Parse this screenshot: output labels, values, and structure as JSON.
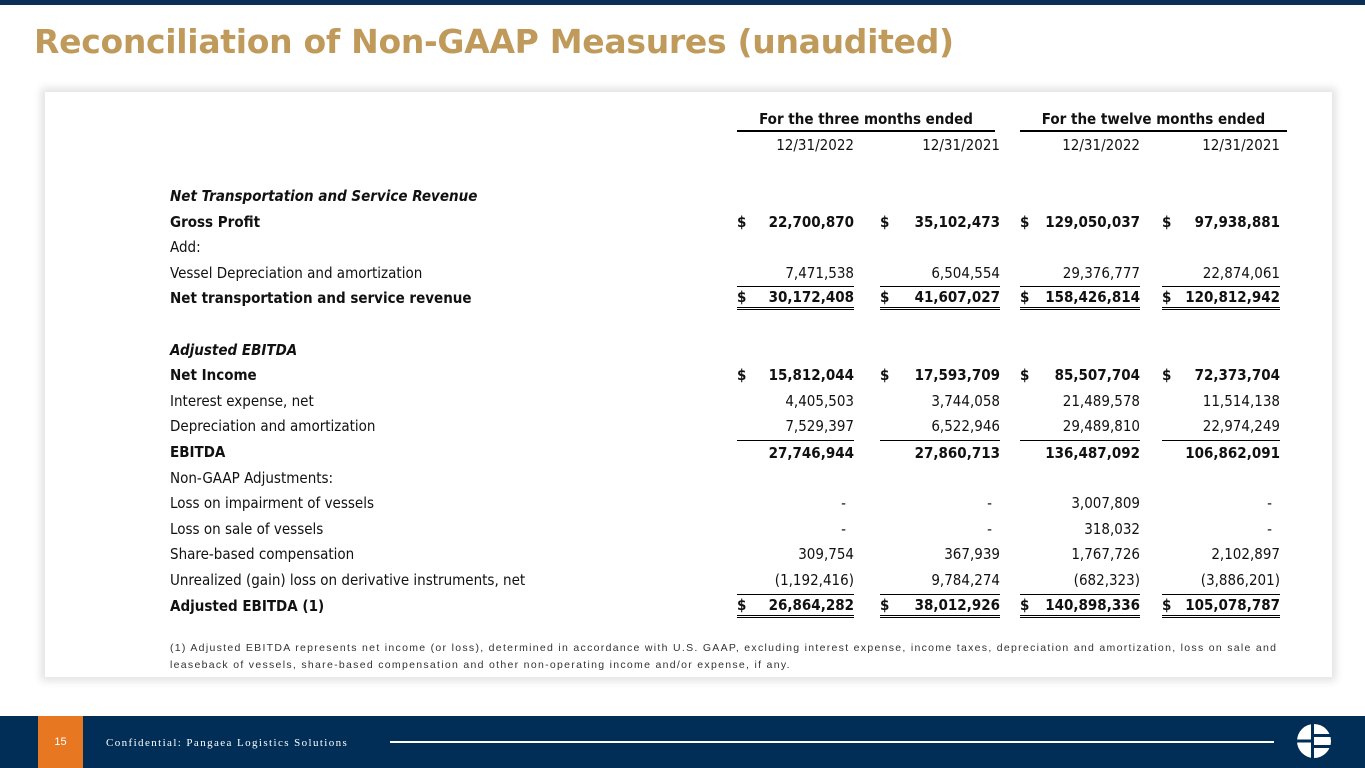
{
  "title": "Reconciliation of Non-GAAP Measures (unaudited)",
  "headers": {
    "three_months": "For the three months ended",
    "twelve_months": "For the twelve months ended",
    "dates": [
      "12/31/2022",
      "12/31/2021",
      "12/31/2022",
      "12/31/2021"
    ]
  },
  "rows": [
    {
      "label": "Net Transportation and Service Revenue",
      "style": "i",
      "values": [
        "",
        "",
        "",
        ""
      ]
    },
    {
      "label": "Gross Profit",
      "style": "b",
      "dollar": true,
      "values": [
        "22,700,870",
        "35,102,473",
        "129,050,037",
        "97,938,881"
      ]
    },
    {
      "label": "Add:",
      "values": [
        "",
        "",
        "",
        ""
      ]
    },
    {
      "label": "Vessel Depreciation and amortization",
      "values": [
        "7,471,538",
        "6,504,554",
        "29,376,777",
        "22,874,061"
      ]
    },
    {
      "label": "Net transportation and service revenue",
      "style": "b",
      "dollar": true,
      "lines": "total",
      "values": [
        "30,172,408",
        "41,607,027",
        "158,426,814",
        "120,812,942"
      ]
    },
    {
      "label": "",
      "values": [
        "",
        "",
        "",
        ""
      ]
    },
    {
      "label": "Adjusted EBITDA",
      "style": "i",
      "values": [
        "",
        "",
        "",
        ""
      ]
    },
    {
      "label": "Net Income",
      "style": "b",
      "dollar": true,
      "values": [
        "15,812,044",
        "17,593,709",
        "85,507,704",
        "72,373,704"
      ]
    },
    {
      "label": "Interest expense, net",
      "values": [
        "4,405,503",
        "3,744,058",
        "21,489,578",
        "11,514,138"
      ]
    },
    {
      "label": "Depreciation and amortization",
      "values": [
        "7,529,397",
        "6,522,946",
        "29,489,810",
        "22,974,249"
      ]
    },
    {
      "label": "EBITDA",
      "style": "b",
      "lines": "sub",
      "values": [
        "27,746,944",
        "27,860,713",
        "136,487,092",
        "106,862,091"
      ]
    },
    {
      "label": "Non-GAAP Adjustments:",
      "values": [
        "",
        "",
        "",
        ""
      ]
    },
    {
      "label": "Loss on impairment of vessels",
      "values": [
        "-",
        "-",
        "3,007,809",
        "-"
      ]
    },
    {
      "label": "Loss on sale of vessels",
      "values": [
        "-",
        "-",
        "318,032",
        "-"
      ]
    },
    {
      "label": "Share-based compensation",
      "values": [
        "309,754",
        "367,939",
        "1,767,726",
        "2,102,897"
      ]
    },
    {
      "label": "Unrealized (gain) loss on derivative instruments, net",
      "values": [
        "(1,192,416)",
        "9,784,274",
        "(682,323)",
        "(3,886,201)"
      ]
    },
    {
      "label": "Adjusted EBITDA (1)",
      "style": "b",
      "dollar": true,
      "lines": "total",
      "values": [
        "26,864,282",
        "38,012,926",
        "140,898,336",
        "105,078,787"
      ]
    }
  ],
  "footnote": "(1) Adjusted EBITDA represents net income (or loss), determined in accordance with U.S. GAAP, excluding interest expense, income taxes, depreciation and amortization, loss on sale and leaseback of vessels, share-based compensation and other non-operating income and/or expense, if any.",
  "footer": {
    "page": "15",
    "text": "Confidential: Pangaea Logistics Solutions"
  }
}
